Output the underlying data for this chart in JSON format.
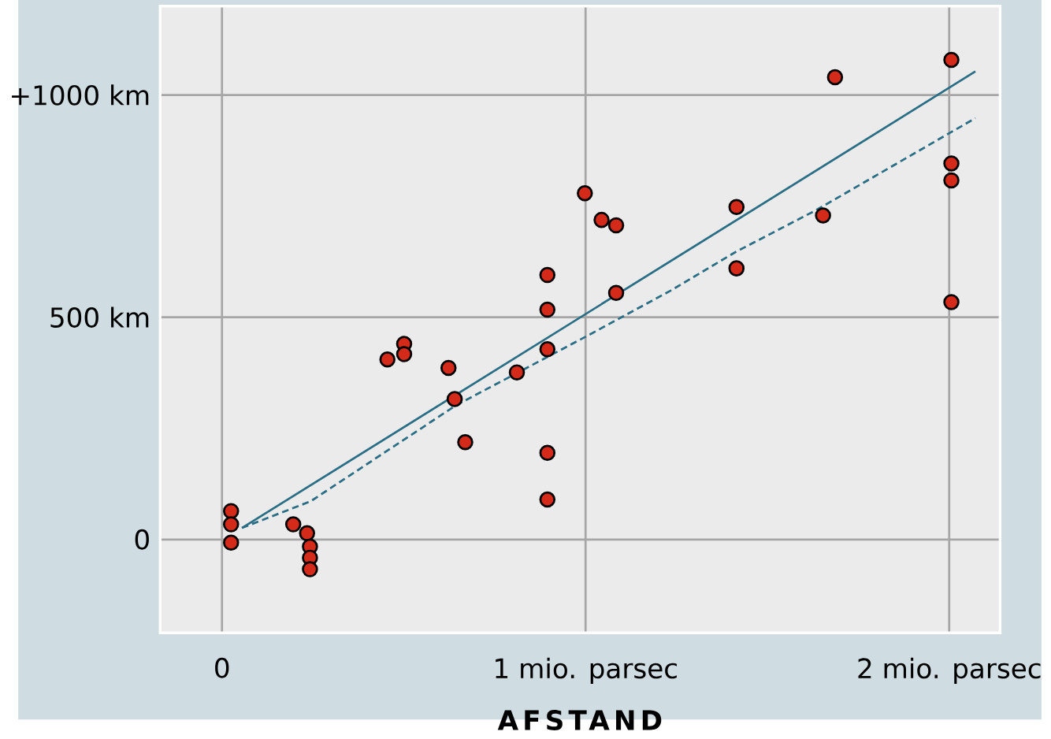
{
  "chart_data": {
    "type": "scatter",
    "xlabel": "AFSTAND",
    "xlim": [
      -0.17,
      2.14
    ],
    "ylim": [
      -210,
      1200
    ],
    "xticks": [
      {
        "value": 0,
        "label": "0"
      },
      {
        "value": 1,
        "label": "1 mio. parsec"
      },
      {
        "value": 2,
        "label": "2 mio. parsec"
      }
    ],
    "yticks": [
      {
        "value": 0,
        "label": "0"
      },
      {
        "value": 500,
        "label": "500 km"
      },
      {
        "value": 1000,
        "label": "+1000 km"
      }
    ],
    "grid": true,
    "series": [
      {
        "marker": "circle",
        "color": "#d42a1a",
        "x": [
          0.025,
          0.025,
          0.025,
          0.196,
          0.234,
          0.242,
          0.242,
          0.242,
          0.455,
          0.501,
          0.501,
          0.623,
          0.64,
          0.669,
          0.811,
          0.895,
          0.895,
          0.895,
          0.895,
          0.895,
          0.998,
          1.044,
          1.084,
          1.084,
          1.415,
          1.415,
          1.653,
          1.686,
          2.006,
          2.006,
          2.006,
          2.006
        ],
        "values": [
          64,
          34,
          -7,
          34,
          14,
          -16,
          -41,
          -67,
          405,
          440,
          417,
          386,
          316,
          219,
          376,
          595,
          517,
          428,
          195,
          90,
          779,
          719,
          707,
          555,
          748,
          610,
          729,
          1040,
          1079,
          846,
          808,
          534
        ]
      },
      {
        "type": "line",
        "marker": "none",
        "line_style": "solid",
        "color": "#2a6e86",
        "x": [
          0.055,
          2.072
        ],
        "values": [
          26,
          1053
        ]
      },
      {
        "type": "line",
        "marker": "none",
        "line_style": "dashed",
        "color": "#2a6e86",
        "x": [
          0.055,
          0.244,
          0.644,
          1.002,
          1.234,
          1.413,
          1.634,
          2.072
        ],
        "values": [
          26,
          86,
          302,
          457,
          560,
          647,
          741,
          948
        ]
      }
    ]
  }
}
